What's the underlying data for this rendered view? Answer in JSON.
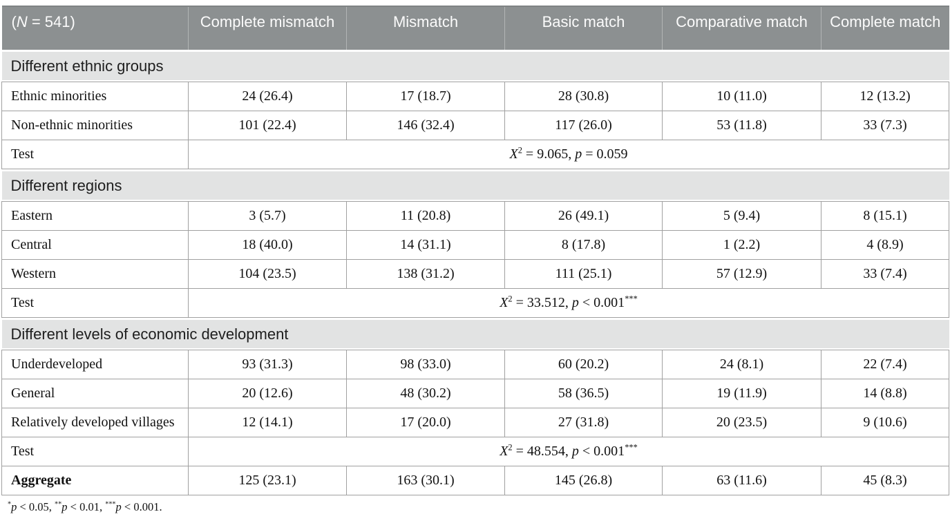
{
  "table": {
    "header": {
      "col0": {
        "prefix": "(",
        "italic": "N",
        "suffix": " = 541)"
      },
      "columns": [
        "Complete mismatch",
        "Mismatch",
        "Basic match",
        "Comparative match",
        "Complete match"
      ]
    },
    "sections": [
      {
        "title": "Different ethnic groups",
        "rows": [
          {
            "label": "Ethnic minorities",
            "values": [
              "24 (26.4)",
              "17 (18.7)",
              "28 (30.8)",
              "10 (11.0)",
              "12 (13.2)"
            ]
          },
          {
            "label": "Non-ethnic minorities",
            "values": [
              "101 (22.4)",
              "146 (32.4)",
              "117 (26.0)",
              "53 (11.8)",
              "33 (7.3)"
            ]
          }
        ],
        "test": {
          "label": "Test",
          "chi": "X",
          "chi_sup": "2",
          "eq": " = 9.065, ",
          "p": "p",
          "p_rest": " = 0.059",
          "stars": ""
        }
      },
      {
        "title": "Different regions",
        "rows": [
          {
            "label": "Eastern",
            "values": [
              "3 (5.7)",
              "11 (20.8)",
              "26 (49.1)",
              "5 (9.4)",
              "8 (15.1)"
            ]
          },
          {
            "label": "Central",
            "values": [
              "18 (40.0)",
              "14 (31.1)",
              "8 (17.8)",
              "1 (2.2)",
              "4 (8.9)"
            ]
          },
          {
            "label": "Western",
            "values": [
              "104 (23.5)",
              "138 (31.2)",
              "111 (25.1)",
              "57 (12.9)",
              "33 (7.4)"
            ]
          }
        ],
        "test": {
          "label": "Test",
          "chi": "X",
          "chi_sup": "2",
          "eq": " = 33.512, ",
          "p": "p",
          "p_rest": " < 0.001",
          "stars": "***"
        }
      },
      {
        "title": "Different levels of economic development",
        "rows": [
          {
            "label": "Underdeveloped",
            "values": [
              "93 (31.3)",
              "98 (33.0)",
              "60 (20.2)",
              "24 (8.1)",
              "22 (7.4)"
            ]
          },
          {
            "label": "General",
            "values": [
              "20 (12.6)",
              "48 (30.2)",
              "58 (36.5)",
              "19 (11.9)",
              "14 (8.8)"
            ]
          },
          {
            "label": "Relatively developed villages",
            "values": [
              "12 (14.1)",
              "17 (20.0)",
              "27 (31.8)",
              "20 (23.5)",
              "9 (10.6)"
            ]
          }
        ],
        "test": {
          "label": "Test",
          "chi": "X",
          "chi_sup": "2",
          "eq": " = 48.554, ",
          "p": "p",
          "p_rest": " < 0.001",
          "stars": "***"
        }
      }
    ],
    "aggregate": {
      "label": "Aggregate",
      "values": [
        "125 (23.1)",
        "163 (30.1)",
        "145 (26.8)",
        "63 (11.6)",
        "45 (8.3)"
      ]
    }
  },
  "footnote": {
    "parts": [
      {
        "stars": "*",
        "p": "p",
        "rest": " < 0.05, "
      },
      {
        "stars": "**",
        "p": "p",
        "rest": " < 0.01, "
      },
      {
        "stars": "***",
        "p": "p",
        "rest": " < 0.001."
      }
    ]
  },
  "colors": {
    "header_bg": "#8c9091",
    "header_text": "#fbfbfb",
    "section_bg": "#e2e3e3",
    "border": "#a0a0a0",
    "text": "#111111"
  }
}
